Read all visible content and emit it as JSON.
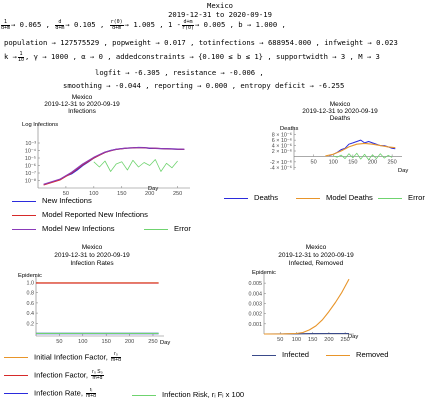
{
  "header": {
    "title": "Mexico",
    "date_range": "2019-12-31 to 2020-09-19",
    "line1": {
      "f1_num": "1",
      "f1_den": "d+m",
      "f1_val": "→ 0.065 ,",
      "f2_num": "d",
      "f2_den": "d+m",
      "f2_val": "→ 0.105 ,",
      "f3_num": "r(0)",
      "f3_den": "d+m",
      "f3_val": "→ 1.005 ,",
      "f4_pre": "1 -",
      "f4_num": "d+m",
      "f4_den": "r(0)",
      "f4_val": "→ 0.005 ,",
      "rest": "b → 1.000 ,"
    },
    "line2": "population → 127575529 ,  popweight → 0.017 ,  totinfections → 688954.000 ,  infweight → 0.023",
    "line3": {
      "pre": "k →",
      "k_num": "1",
      "k_den": "10",
      "post": ", γ → 1000 ,  α → 0 ,  addedconstraints → {0.100 ≤ b ≤ 1} ,  supportwidth → 3 ,  M → 3"
    },
    "line4": "logfit → -6.305 ,  resistance → -0.006 ,",
    "line5": "smoothing → -0.044 ,  reporting → 0.000 ,  entropy deficit → -6.255"
  },
  "colors": {
    "blue": "#2b2bdc",
    "red": "#d62a2a",
    "purple": "#8a3ab9",
    "green": "#6fd36f",
    "orange": "#e8952a",
    "navy": "#3a4a8a"
  },
  "chart_data": [
    {
      "type": "line",
      "title": "Mexico",
      "subtitle": "2019-12-31 to 2020-09-19",
      "subtitle2": "Infections",
      "ylabel": "Log Infections",
      "xlabel": "Day",
      "scale": "log",
      "xlim": [
        0,
        265
      ],
      "ylim_exp": [
        -9,
        -1
      ],
      "x_ticks": [
        "50",
        "100",
        "150",
        "200",
        "250"
      ],
      "y_ticks": [
        "10⁻³",
        "10⁻⁴",
        "10⁻⁵",
        "10⁻⁶",
        "10⁻⁷",
        "10⁻⁸"
      ],
      "series": [
        {
          "name": "New Infections",
          "color": "blue",
          "x": [
            50,
            60,
            70,
            80,
            90,
            100,
            110,
            120,
            130,
            140,
            150,
            160,
            170,
            180,
            190,
            200,
            210,
            220,
            230,
            240,
            250,
            262
          ],
          "log10": [
            -7.4,
            -7.1,
            -6.6,
            -6.0,
            -5.5,
            -5.0,
            -4.6,
            -4.25,
            -4.0,
            -3.85,
            -3.75,
            -3.68,
            -3.65,
            -3.6,
            -3.62,
            -3.7,
            -3.72,
            -3.75,
            -3.78,
            -3.8,
            -3.82,
            -3.85
          ]
        },
        {
          "name": "Model Reported New Infections",
          "color": "red",
          "x": [
            10,
            40,
            60,
            80,
            100,
            120,
            140,
            160,
            180,
            200,
            220,
            240,
            262
          ],
          "log10": [
            -8.6,
            -7.9,
            -7.0,
            -5.9,
            -5.0,
            -4.25,
            -3.85,
            -3.68,
            -3.62,
            -3.68,
            -3.75,
            -3.8,
            -3.86
          ]
        },
        {
          "name": "Model New Infections",
          "color": "purple",
          "x": [
            10,
            40,
            60,
            80,
            100,
            120,
            140,
            160,
            180,
            200,
            220,
            240,
            262
          ],
          "log10": [
            -8.5,
            -7.8,
            -6.9,
            -5.8,
            -4.9,
            -4.2,
            -3.82,
            -3.66,
            -3.6,
            -3.66,
            -3.73,
            -3.78,
            -3.84
          ]
        },
        {
          "name": "Error",
          "color": "green",
          "x": [
            100,
            110,
            120,
            130,
            140,
            150,
            160,
            170,
            180,
            190,
            200,
            210,
            220,
            230,
            240,
            250
          ],
          "log10": [
            -5.5,
            -6.2,
            -5.4,
            -6.8,
            -5.8,
            -5.5,
            -6.6,
            -5.3,
            -6.2,
            -5.6,
            -6.0,
            -5.2,
            -6.8,
            -5.7,
            -6.3,
            -5.4
          ]
        }
      ]
    },
    {
      "type": "line",
      "title": "Mexico",
      "subtitle": "2019-12-31 to 2020-09-19",
      "subtitle2": "Deaths",
      "ylabel": "Deaths",
      "xlabel": "Day",
      "xlim": [
        0,
        265
      ],
      "ylim": [
        -5e-06,
        9e-06
      ],
      "x_ticks": [
        "50",
        "100",
        "150",
        "200",
        "250"
      ],
      "y_ticks": [
        "8 × 10⁻⁶",
        "6 × 10⁻⁶",
        "4 × 10⁻⁶",
        "2 × 10⁻⁶",
        "-2 × 10⁻⁶",
        "-4 × 10⁻⁶"
      ],
      "y_tick_values": [
        8e-06,
        6e-06,
        4e-06,
        2e-06,
        -2e-06,
        -4e-06
      ],
      "series": [
        {
          "name": "Deaths",
          "color": "blue",
          "x": [
            90,
            100,
            110,
            120,
            130,
            140,
            150,
            160,
            170,
            180,
            190,
            200,
            210,
            220,
            230,
            240,
            250,
            258
          ],
          "y": [
            3e-07,
            8e-07,
            1.5e-06,
            2.5e-06,
            3e-06,
            4.5e-06,
            5e-06,
            5.5e-06,
            6e-06,
            5e-06,
            5.5e-06,
            5e-06,
            4.5e-06,
            4e-06,
            4e-06,
            3.5e-06,
            3e-06,
            2.8e-06
          ]
        },
        {
          "name": "Model Deaths",
          "color": "orange",
          "x": [
            80,
            100,
            120,
            140,
            160,
            180,
            200,
            220,
            240,
            258
          ],
          "y": [
            2e-07,
            8e-07,
            2e-06,
            3.5e-06,
            4.5e-06,
            4.8e-06,
            4.5e-06,
            4e-06,
            3.5e-06,
            3.2e-06
          ]
        },
        {
          "name": "Error",
          "color": "green",
          "x": [
            100,
            110,
            120,
            130,
            140,
            150,
            160,
            170,
            180,
            190,
            200,
            210,
            220,
            230,
            240,
            250
          ],
          "y": [
            2e-07,
            -3e-07,
            5e-07,
            -8e-07,
            1e-06,
            -5e-07,
            1.2e-06,
            -1e-06,
            8e-07,
            -1.2e-06,
            6e-07,
            -8e-07,
            1e-06,
            -6e-07,
            4e-07,
            -4e-07
          ]
        }
      ]
    },
    {
      "type": "line",
      "title": "Mexico",
      "subtitle": "2019-12-31 to 2020-09-19",
      "subtitle2": "Infection Rates",
      "ylabel": "Epidemic",
      "xlabel": "Day",
      "xlim": [
        0,
        265
      ],
      "ylim": [
        -0.05,
        1.05
      ],
      "x_ticks": [
        "50",
        "100",
        "150",
        "200",
        "250"
      ],
      "y_ticks": [
        "1.0",
        "0.8",
        "0.6",
        "0.4",
        "0.2"
      ],
      "y_tick_values": [
        1.0,
        0.8,
        0.6,
        0.4,
        0.2
      ],
      "series": [
        {
          "name": "Initial Infection Factor",
          "color": "orange",
          "x": [
            0,
            262
          ],
          "y": [
            0.995,
            0.995
          ]
        },
        {
          "name": "Infection Factor",
          "color": "red",
          "x": [
            0,
            262
          ],
          "y": [
            0.99,
            0.99
          ]
        },
        {
          "name": "Infection Rate",
          "color": "blue",
          "x": [
            0,
            262
          ],
          "y": [
            0.0,
            0.0
          ]
        },
        {
          "name": "Infection Risk",
          "color": "green",
          "x": [
            0,
            262
          ],
          "y": [
            0.002,
            0.002
          ]
        }
      ]
    },
    {
      "type": "line",
      "title": "Mexico",
      "subtitle": "2019-12-31 to 2020-09-19",
      "subtitle2": "Infected, Removed",
      "ylabel": "Epidemic",
      "xlabel": "Day",
      "xlim": [
        0,
        265
      ],
      "ylim": [
        0,
        0.0057
      ],
      "x_ticks": [
        "50",
        "100",
        "150",
        "200",
        "250"
      ],
      "y_ticks": [
        "0.005",
        "0.004",
        "0.003",
        "0.002",
        "0.001"
      ],
      "y_tick_values": [
        0.005,
        0.004,
        0.003,
        0.002,
        0.001
      ],
      "series": [
        {
          "name": "Infected",
          "color": "navy",
          "x": [
            0,
            100,
            150,
            200,
            262
          ],
          "y": [
            0,
            2e-05,
            4e-05,
            5e-05,
            5e-05
          ]
        },
        {
          "name": "Removed",
          "color": "orange",
          "x": [
            0,
            60,
            100,
            120,
            140,
            160,
            180,
            200,
            220,
            240,
            262
          ],
          "y": [
            0,
            1e-05,
            5e-05,
            0.00015,
            0.0004,
            0.0008,
            0.0014,
            0.0022,
            0.0031,
            0.0041,
            0.0054
          ]
        }
      ]
    }
  ],
  "legends": {
    "chart1": [
      "New Infections",
      "Model Reported New Infections",
      "Model New Infections",
      "Error"
    ],
    "chart2": [
      "Deaths",
      "Model Deaths",
      "Error"
    ],
    "chart3": {
      "initial_factor": "Initial Infection Factor,",
      "initial_num": "r₀",
      "initial_den": "m+d",
      "factor": "Infection Factor,",
      "factor_num": "r₀ S₀",
      "factor_den": "m+d",
      "rate": "Infection Rate,",
      "rate_num": "rᵢ",
      "rate_den": "m+d",
      "risk": "Infection Risk,  rᵢ Fᵢ x 100"
    },
    "chart4": [
      "Infected",
      "Removed"
    ]
  }
}
